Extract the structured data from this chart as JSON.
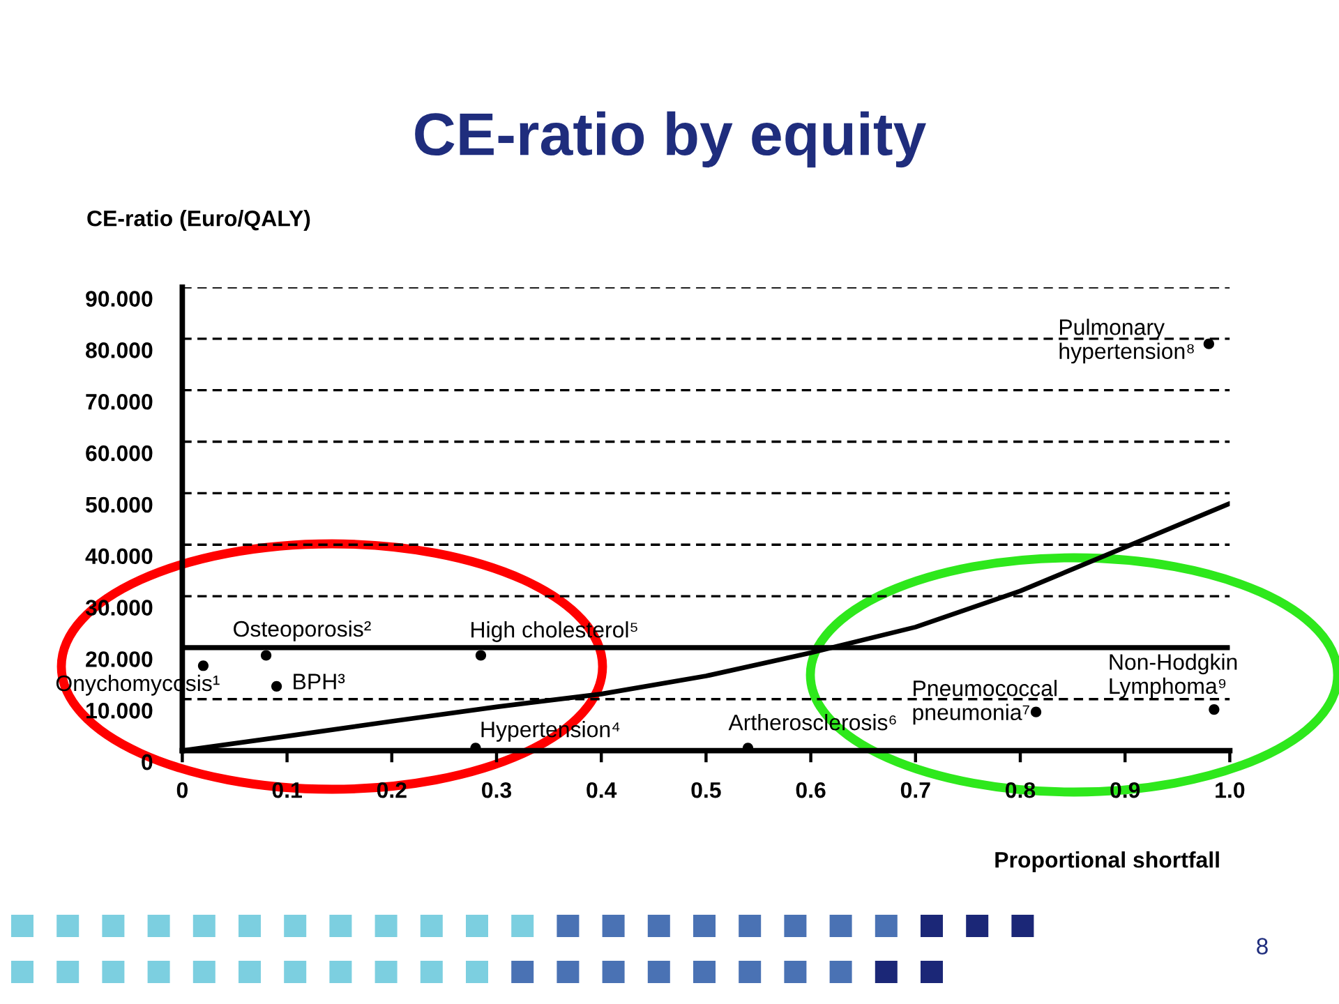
{
  "chart_data": {
    "type": "scatter",
    "title": "CE-ratio by equity",
    "xlabel": "Proportional shortfall",
    "ylabel": "CE-ratio (Euro/QALY)",
    "series": [
      {
        "color": "#000000",
        "marker": "circle",
        "x": [
          0.02,
          0.08,
          0.09,
          0.28,
          0.285,
          0.54,
          0.815,
          0.98,
          0.985
        ],
        "values": [
          16.5,
          18.5,
          12.5,
          0.5,
          18.5,
          0.5,
          7.5,
          79,
          8
        ]
      },
      {
        "type": "line",
        "color": "#000000",
        "marker": "none",
        "line_style": "solid",
        "x": [
          0,
          0.1,
          0.2,
          0.3,
          0.4,
          0.5,
          0.6,
          0.7,
          0.8,
          0.9,
          1.0
        ],
        "values": [
          0,
          2.8,
          5.7,
          8.5,
          11,
          14.5,
          19,
          24,
          31,
          39.5,
          48
        ]
      }
    ],
    "xlim": [
      0,
      1
    ],
    "ylim": [
      0,
      90
    ],
    "xticks": [
      0,
      0.1,
      0.2,
      0.3,
      0.4,
      0.5,
      0.6,
      0.7,
      0.8,
      0.9,
      {
        "value": 1,
        "label": "1.0"
      }
    ],
    "yticks": [
      0,
      {
        "value": 10,
        "label": "10.000"
      },
      {
        "value": 20,
        "label": "20.000"
      },
      {
        "value": 30,
        "label": "30.000"
      },
      {
        "value": 40,
        "label": "40.000"
      },
      {
        "value": 50,
        "label": "50.000"
      },
      {
        "value": 60,
        "label": "60.000"
      },
      {
        "value": 70,
        "label": "70.000"
      },
      {
        "value": 80,
        "label": "80.000"
      },
      {
        "value": 90,
        "label": "90.000"
      }
    ],
    "grid": "y",
    "ref_lines": [
      {
        "axis": "y",
        "value": 20,
        "color": "#000000",
        "line_style": "solid"
      }
    ],
    "annotations": [
      {
        "text": "Onychomycosis¹",
        "x": 0.02,
        "y": 16.5
      },
      {
        "text": "Osteoporosis²",
        "x": 0.08,
        "y": 18.5
      },
      {
        "text": "BPH³",
        "x": 0.09,
        "y": 12.5
      },
      {
        "text": "Hypertension⁴",
        "x": 0.28,
        "y": 0.5
      },
      {
        "text": "High cholesterol⁵",
        "x": 0.285,
        "y": 18.5
      },
      {
        "text": "Artherosclerosis⁶",
        "x": 0.54,
        "y": 0.5
      },
      {
        "text": "Pneumococcal\npneumonia⁷",
        "x": 0.815,
        "y": 7.5
      },
      {
        "text": "Pulmonary\nhypertension⁸",
        "x": 0.98,
        "y": 79
      },
      {
        "text": "Non-Hodgkin\nLymphoma⁹",
        "x": 0.985,
        "y": 8
      },
      "8"
    ]
  }
}
